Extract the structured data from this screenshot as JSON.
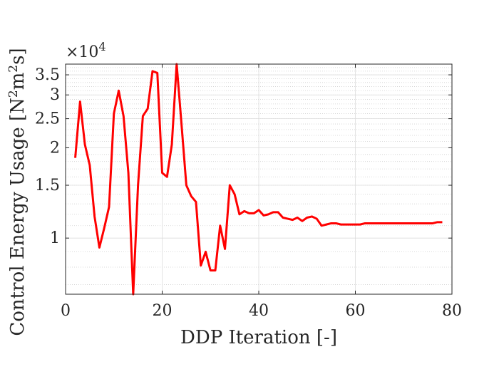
{
  "chart_data": {
    "type": "line",
    "xlabel": "DDP Iteration [-]",
    "ylabel_main": "Control Energy Usage [N",
    "ylabel_sup1": "2",
    "ylabel_mid": "m",
    "ylabel_sup2": "2",
    "ylabel_end": "s]",
    "y_exponent_base": "×10",
    "y_exponent_power": "4",
    "xlim": [
      0,
      80
    ],
    "ylim": [
      0.65,
      3.8
    ],
    "yscale": "log",
    "grid": true,
    "x_ticks": [
      0,
      20,
      40,
      60,
      80
    ],
    "x_tick_labels": [
      "0",
      "20",
      "40",
      "60",
      "80"
    ],
    "y_ticks": [
      1,
      1.5,
      2,
      2.5,
      3,
      3.5
    ],
    "y_tick_labels": [
      "1",
      "1.5",
      "2",
      "2.5",
      "3",
      "3.5"
    ],
    "series": [
      {
        "color": "#ff0000",
        "x": [
          2,
          3,
          4,
          5,
          6,
          7,
          8,
          9,
          10,
          11,
          12,
          13,
          14,
          15,
          16,
          17,
          18,
          19,
          20,
          21,
          22,
          23,
          24,
          25,
          26,
          27,
          28,
          29,
          30,
          31,
          32,
          33,
          34,
          35,
          36,
          37,
          38,
          39,
          40,
          41,
          42,
          43,
          44,
          45,
          46,
          47,
          48,
          49,
          50,
          51,
          52,
          53,
          54,
          55,
          56,
          57,
          58,
          59,
          60,
          61,
          62,
          63,
          64,
          65,
          66,
          67,
          68,
          69,
          70,
          71,
          72,
          73,
          74,
          75,
          76,
          77,
          78
        ],
        "y": [
          1.85,
          2.85,
          2.05,
          1.75,
          1.18,
          0.93,
          1.08,
          1.27,
          2.6,
          3.1,
          2.55,
          1.65,
          0.65,
          1.5,
          2.55,
          2.7,
          3.6,
          3.55,
          1.65,
          1.6,
          2.05,
          3.8,
          2.4,
          1.5,
          1.38,
          1.32,
          0.81,
          0.9,
          0.78,
          0.78,
          1.1,
          0.92,
          1.5,
          1.4,
          1.2,
          1.23,
          1.21,
          1.21,
          1.24,
          1.19,
          1.2,
          1.22,
          1.22,
          1.17,
          1.16,
          1.15,
          1.17,
          1.14,
          1.17,
          1.18,
          1.16,
          1.1,
          1.11,
          1.12,
          1.12,
          1.11,
          1.11,
          1.11,
          1.11,
          1.11,
          1.12,
          1.12,
          1.12,
          1.12,
          1.12,
          1.12,
          1.12,
          1.12,
          1.12,
          1.12,
          1.12,
          1.12,
          1.12,
          1.12,
          1.12,
          1.13,
          1.13
        ]
      }
    ]
  }
}
